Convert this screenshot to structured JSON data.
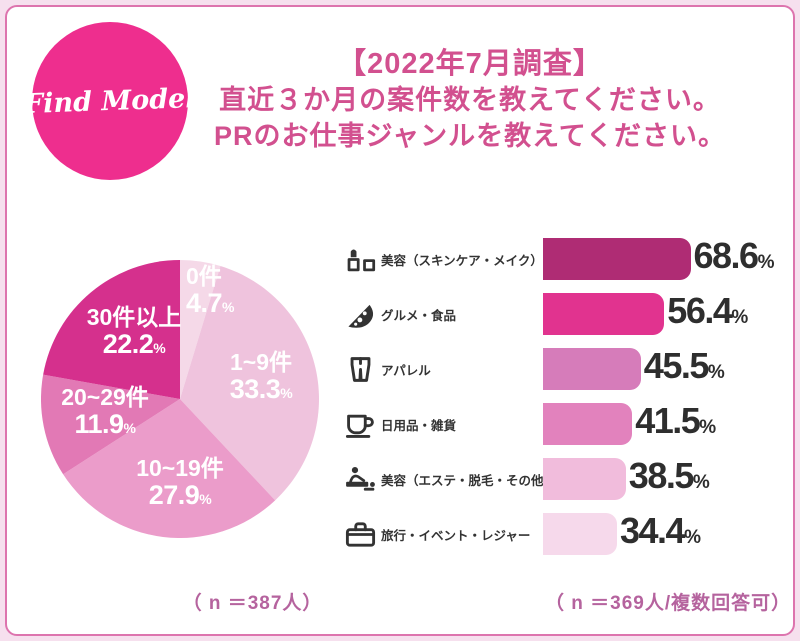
{
  "frame": {
    "border_color": "#dd74ae",
    "outer_background": "#f6e0ee",
    "inner_background": "#ffffff"
  },
  "header": {
    "logo_text": "Find Model",
    "logo_color": "#ee2e8e",
    "title_line1": "【2022年7月調査】",
    "title_line2": "直近３か月の案件数を教えてください。",
    "title_line3": "PRのお仕事ジャンルを教えてください。",
    "title_color": "#d2508f"
  },
  "footnotes": {
    "pie": "（ n ＝387人）",
    "bar": "（ n ＝369人/複数回答可）"
  },
  "chart_data": [
    {
      "type": "pie",
      "title": "直近３か月の案件数",
      "unit": "%",
      "start_angle_deg": 0,
      "direction": "clockwise",
      "legend_position": "inside",
      "slices": [
        {
          "label": "0件",
          "value": 4.7,
          "color": "#f5d9e8"
        },
        {
          "label": "1~9件",
          "value": 33.3,
          "color": "#efc3dd"
        },
        {
          "label": "10~19件",
          "value": 27.9,
          "color": "#eb9cca"
        },
        {
          "label": "20~29件",
          "value": 11.9,
          "color": "#e279b5"
        },
        {
          "label": "30件以上",
          "value": 22.2,
          "color": "#d5308d"
        }
      ],
      "n_caption": "（ n ＝387人）"
    },
    {
      "type": "bar",
      "title": "PRのお仕事ジャンル",
      "unit": "%",
      "orientation": "horizontal",
      "xlim": [
        0,
        70
      ],
      "grid": false,
      "rows": [
        {
          "label": "美容（スキンケア・メイク）",
          "icon": "cosmetics-icon",
          "value": 68.6,
          "color": "#af2c74"
        },
        {
          "label": "グルメ・食品",
          "icon": "pizza-icon",
          "value": 56.4,
          "color": "#e1338f"
        },
        {
          "label": "アパレル",
          "icon": "pants-icon",
          "value": 45.5,
          "color": "#d67cba"
        },
        {
          "label": "日用品・雑貨",
          "icon": "cup-icon",
          "value": 41.5,
          "color": "#e282bd"
        },
        {
          "label": "美容（エステ・脱毛・その他）",
          "icon": "massage-icon",
          "value": 38.5,
          "color": "#f1bcdc"
        },
        {
          "label": "旅行・イベント・レジャー",
          "icon": "bag-icon",
          "value": 34.4,
          "color": "#f6d9eb"
        }
      ],
      "n_caption": "（ n ＝369人/複数回答可）"
    }
  ]
}
